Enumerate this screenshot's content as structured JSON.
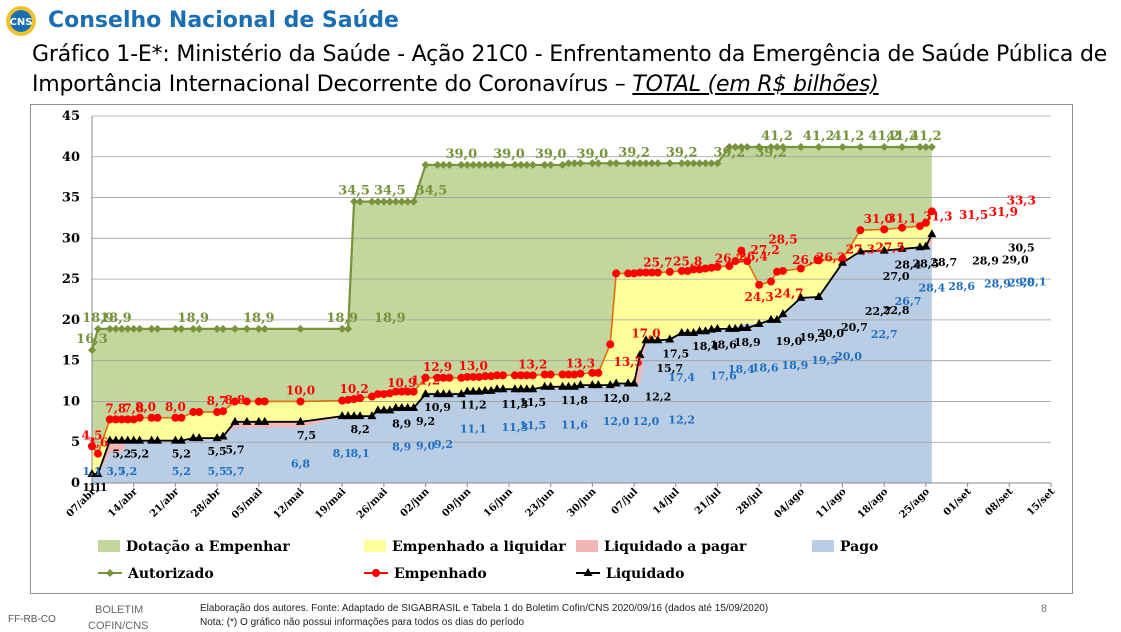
{
  "header": {
    "org_name": "Conselho Nacional de Saúde",
    "logo_text": "CNS",
    "title_main": "Gráfico 1-E*: Ministério da Saúde - Ação 21C0 - Enfrentamento da Emergência de Saúde Pública de Importância Internacional Decorrente do Coronavírus – ",
    "title_unit": "TOTAL (em R$ bilhões)"
  },
  "colors": {
    "autorizado": "#77933c",
    "dotacao_fill": "#c3d69b",
    "empenhado": "#ff0000",
    "empenhado_line": "#e46c0a",
    "emp_fill": "#ffff99",
    "liq_fill": "#f2b6b6",
    "pago_fill": "#b9cde5",
    "liquidado": "#000000",
    "pago_label": "#1f6fc1"
  },
  "chart_data": {
    "type": "area",
    "x_tick_labels": [
      "07/abr",
      "14/abr",
      "21/abr",
      "28/abr",
      "05/mai",
      "12/mai",
      "19/mai",
      "26/mai",
      "02/jun",
      "09/jun",
      "16/jun",
      "23/jun",
      "30/jun",
      "07/jul",
      "14/jul",
      "21/jul",
      "28/jul",
      "04/ago",
      "11/ago",
      "18/ago",
      "25/ago",
      "01/set",
      "08/set",
      "15/set"
    ],
    "ylim": [
      0,
      45
    ],
    "y_ticks": [
      "0",
      "5",
      "10",
      "15",
      "20",
      "25",
      "30",
      "35",
      "40",
      "45"
    ],
    "grid": true,
    "legend_position": "bottom",
    "x_days": [
      0,
      1,
      3,
      4,
      5,
      6,
      7,
      8,
      10,
      11,
      14,
      15,
      17,
      18,
      21,
      22,
      24,
      26,
      28,
      29,
      35,
      42,
      43,
      44,
      45,
      47,
      48,
      49,
      50,
      51,
      52,
      53,
      54,
      56,
      58,
      59,
      60,
      62,
      63,
      64,
      65,
      66,
      67,
      68,
      69,
      71,
      72,
      73,
      74,
      76,
      77,
      79,
      80,
      81,
      82,
      84,
      85,
      87,
      88,
      90,
      91,
      92,
      93,
      94,
      95,
      97,
      99,
      100,
      101,
      102,
      103,
      104,
      105,
      107,
      108,
      109,
      110,
      112,
      114,
      115,
      116,
      119,
      122,
      126,
      129,
      133,
      136,
      139,
      140,
      141
    ],
    "series": [
      {
        "name": "Autorizado",
        "values": [
          16.3,
          18.9,
          18.9,
          18.9,
          18.9,
          18.9,
          18.9,
          18.9,
          18.9,
          18.9,
          18.9,
          18.9,
          18.9,
          18.9,
          18.9,
          18.9,
          18.9,
          18.9,
          18.9,
          18.9,
          18.9,
          18.9,
          18.9,
          34.5,
          34.5,
          34.5,
          34.5,
          34.5,
          34.5,
          34.5,
          34.5,
          34.5,
          34.5,
          39.0,
          39.0,
          39.0,
          39.0,
          39.0,
          39.0,
          39.0,
          39.0,
          39.0,
          39.0,
          39.0,
          39.0,
          39.0,
          39.0,
          39.0,
          39.0,
          39.0,
          39.0,
          39.0,
          39.2,
          39.2,
          39.2,
          39.2,
          39.2,
          39.2,
          39.2,
          39.2,
          39.2,
          39.2,
          39.2,
          39.2,
          39.2,
          39.2,
          39.2,
          39.2,
          39.2,
          39.2,
          39.2,
          39.2,
          39.2,
          41.2,
          41.2,
          41.2,
          41.2,
          41.2,
          41.2,
          41.2,
          41.2,
          41.2,
          41.2,
          41.2,
          41.2,
          41.2,
          41.2,
          41.2,
          41.2,
          41.2
        ]
      },
      {
        "name": "Empenhado",
        "values": [
          4.5,
          3.6,
          7.8,
          7.8,
          7.8,
          7.8,
          7.8,
          8.0,
          8.0,
          8.0,
          8.0,
          8.0,
          8.7,
          8.7,
          8.7,
          8.8,
          10.0,
          10.0,
          10.0,
          10.0,
          10.0,
          10.1,
          10.2,
          10.3,
          10.4,
          10.6,
          10.9,
          10.9,
          11.0,
          11.2,
          11.2,
          11.2,
          11.2,
          12.9,
          12.9,
          12.9,
          12.9,
          12.9,
          13.0,
          13.0,
          13.0,
          13.1,
          13.1,
          13.2,
          13.2,
          13.2,
          13.2,
          13.2,
          13.2,
          13.3,
          13.3,
          13.3,
          13.3,
          13.3,
          13.4,
          13.5,
          13.5,
          17.0,
          25.7,
          25.7,
          25.7,
          25.8,
          25.8,
          25.8,
          25.8,
          25.9,
          26.0,
          26.0,
          26.2,
          26.2,
          26.3,
          26.4,
          26.5,
          26.6,
          27.2,
          28.5,
          27.2,
          24.3,
          24.7,
          25.9,
          26.0,
          26.3,
          27.3,
          27.5,
          31.0,
          31.1,
          31.3,
          31.5,
          31.9,
          33.3
        ]
      },
      {
        "name": "Liquidado",
        "values": [
          1.1,
          1.1,
          5.2,
          5.2,
          5.2,
          5.2,
          5.2,
          5.2,
          5.2,
          5.2,
          5.2,
          5.2,
          5.5,
          5.5,
          5.5,
          5.7,
          7.5,
          7.5,
          7.5,
          7.5,
          7.5,
          8.2,
          8.2,
          8.2,
          8.2,
          8.2,
          8.9,
          8.9,
          8.9,
          9.2,
          9.2,
          9.2,
          9.2,
          10.9,
          10.9,
          10.9,
          10.9,
          10.9,
          11.2,
          11.2,
          11.2,
          11.3,
          11.3,
          11.5,
          11.5,
          11.5,
          11.5,
          11.5,
          11.5,
          11.8,
          11.8,
          11.8,
          11.8,
          11.8,
          12.0,
          12.0,
          12.0,
          12.0,
          12.2,
          12.2,
          12.2,
          15.7,
          17.5,
          17.5,
          17.5,
          17.6,
          18.4,
          18.4,
          18.4,
          18.6,
          18.6,
          18.8,
          18.9,
          18.9,
          18.9,
          19.0,
          19.0,
          19.5,
          20.0,
          20.0,
          20.7,
          22.7,
          22.8,
          27.0,
          28.4,
          28.5,
          28.7,
          28.9,
          29.0,
          30.5
        ]
      },
      {
        "name": "Pago",
        "values": [
          1.1,
          1.1,
          3.7,
          3.7,
          3.7,
          5.2,
          5.2,
          5.2,
          5.2,
          5.2,
          5.2,
          5.2,
          5.4,
          5.4,
          5.5,
          5.7,
          6.8,
          6.8,
          6.8,
          6.8,
          6.8,
          8.1,
          8.1,
          8.1,
          8.1,
          8.1,
          8.9,
          8.9,
          8.9,
          9.2,
          9.2,
          9.2,
          9.2,
          11.1,
          11.1,
          11.1,
          11.1,
          11.1,
          11.1,
          11.1,
          11.1,
          11.3,
          11.3,
          11.5,
          11.5,
          11.5,
          11.5,
          11.5,
          11.5,
          11.6,
          11.6,
          11.6,
          11.6,
          11.6,
          12.0,
          12.0,
          12.0,
          12.0,
          12.2,
          12.2,
          12.2,
          12.2,
          17.4,
          17.4,
          17.4,
          17.6,
          18.4,
          18.4,
          18.4,
          18.6,
          18.6,
          18.8,
          18.9,
          18.9,
          18.9,
          19.5,
          19.5,
          19.5,
          20.0,
          20.0,
          20.7,
          22.7,
          22.7,
          26.7,
          28.4,
          28.4,
          28.6,
          28.9,
          29.0,
          29.1
        ]
      }
    ],
    "point_labels": {
      "autorizado": [
        {
          "t": "16,3",
          "d": 0
        },
        {
          "t": "18,9",
          "d": 1
        },
        {
          "t": "18,9",
          "d": 4
        },
        {
          "t": "18,9",
          "d": 17
        },
        {
          "t": "18,9",
          "d": 28
        },
        {
          "t": "18,9",
          "d": 42
        },
        {
          "t": "18,9",
          "d": 50
        },
        {
          "t": "34,5",
          "d": 44
        },
        {
          "t": "34,5",
          "d": 50
        },
        {
          "t": "34,5",
          "d": 57
        },
        {
          "t": "39,0",
          "d": 62
        },
        {
          "t": "39,0",
          "d": 70
        },
        {
          "t": "39,0",
          "d": 77
        },
        {
          "t": "39,0",
          "d": 84
        },
        {
          "t": "39,2",
          "d": 91
        },
        {
          "t": "39,2",
          "d": 99
        },
        {
          "t": "39,2",
          "d": 107
        },
        {
          "t": "39,2",
          "d": 114
        },
        {
          "t": "41,2",
          "d": 115
        },
        {
          "t": "41,2",
          "d": 122
        },
        {
          "t": "41,2",
          "d": 127
        },
        {
          "t": "41,2",
          "d": 133
        },
        {
          "t": "41,2",
          "d": 136
        },
        {
          "t": "41,2",
          "d": 140
        }
      ],
      "empenhado": [
        {
          "t": "4,5",
          "d": 0
        },
        {
          "t": "3,6",
          "d": 1
        },
        {
          "t": "7,8",
          "d": 4
        },
        {
          "t": "7,8",
          "d": 7
        },
        {
          "t": "8,0",
          "d": 9
        },
        {
          "t": "8,0",
          "d": 14
        },
        {
          "t": "8,7",
          "d": 21
        },
        {
          "t": "8,8",
          "d": 24
        },
        {
          "t": "10,0",
          "d": 35
        },
        {
          "t": "10,2",
          "d": 44
        },
        {
          "t": "10,9",
          "d": 52
        },
        {
          "t": "11,2",
          "d": 56
        },
        {
          "t": "12,9",
          "d": 58
        },
        {
          "t": "13,0",
          "d": 64
        },
        {
          "t": "13,2",
          "d": 74
        },
        {
          "t": "13,3",
          "d": 82
        },
        {
          "t": "13,5",
          "d": 90
        },
        {
          "t": "17,0",
          "d": 93
        },
        {
          "t": "25,7",
          "d": 95
        },
        {
          "t": "25,8",
          "d": 100
        },
        {
          "t": "26,2",
          "d": 107
        },
        {
          "t": "26,4",
          "d": 111
        },
        {
          "t": "27,2",
          "d": 113
        },
        {
          "t": "28,5",
          "d": 116
        },
        {
          "t": "24,3",
          "d": 112
        },
        {
          "t": "24,7",
          "d": 117
        },
        {
          "t": "26,0",
          "d": 120
        },
        {
          "t": "26,3",
          "d": 124
        },
        {
          "t": "27,3",
          "d": 129
        },
        {
          "t": "27,5",
          "d": 134
        },
        {
          "t": "31,0",
          "d": 132
        },
        {
          "t": "31,1",
          "d": 136
        },
        {
          "t": "31,3",
          "d": 142
        },
        {
          "t": "31,5",
          "d": 148
        },
        {
          "t": "31,9",
          "d": 153
        },
        {
          "t": "33,3",
          "d": 156
        }
      ],
      "liquidado": [
        {
          "t": "1,1",
          "d": 0
        },
        {
          "t": "1,1",
          "d": 1
        },
        {
          "t": "5,2",
          "d": 5
        },
        {
          "t": "5,2",
          "d": 8
        },
        {
          "t": "5,2",
          "d": 15
        },
        {
          "t": "5,5",
          "d": 21
        },
        {
          "t": "5,7",
          "d": 24
        },
        {
          "t": "7,5",
          "d": 36
        },
        {
          "t": "8,2",
          "d": 45
        },
        {
          "t": "8,9",
          "d": 52
        },
        {
          "t": "9,2",
          "d": 56
        },
        {
          "t": "10,9",
          "d": 58
        },
        {
          "t": "11,2",
          "d": 64
        },
        {
          "t": "11,3",
          "d": 71
        },
        {
          "t": "11,5",
          "d": 74
        },
        {
          "t": "11,8",
          "d": 81
        },
        {
          "t": "12,0",
          "d": 88
        },
        {
          "t": "12,2",
          "d": 95
        },
        {
          "t": "15,7",
          "d": 97
        },
        {
          "t": "17,5",
          "d": 98
        },
        {
          "t": "18,4",
          "d": 103
        },
        {
          "t": "18,6",
          "d": 106
        },
        {
          "t": "18,9",
          "d": 110
        },
        {
          "t": "19,0",
          "d": 117
        },
        {
          "t": "19,5",
          "d": 121
        },
        {
          "t": "20,0",
          "d": 124
        },
        {
          "t": "20,7",
          "d": 128
        },
        {
          "t": "22,7",
          "d": 132
        },
        {
          "t": "22,8",
          "d": 135
        },
        {
          "t": "27,0",
          "d": 135
        },
        {
          "t": "28,4",
          "d": 137
        },
        {
          "t": "28,5",
          "d": 140
        },
        {
          "t": "28,7",
          "d": 143
        },
        {
          "t": "28,9",
          "d": 150
        },
        {
          "t": "29,0",
          "d": 155
        },
        {
          "t": "30,5",
          "d": 156
        }
      ],
      "pago": [
        {
          "t": "1,1",
          "d": 0
        },
        {
          "t": "3,7",
          "d": 4
        },
        {
          "t": "5,2",
          "d": 6
        },
        {
          "t": "5,2",
          "d": 15
        },
        {
          "t": "5,5",
          "d": 21
        },
        {
          "t": "5,7",
          "d": 24
        },
        {
          "t": "6,8",
          "d": 35
        },
        {
          "t": "8,1",
          "d": 42
        },
        {
          "t": "8,1",
          "d": 45
        },
        {
          "t": "8,9",
          "d": 52
        },
        {
          "t": "9,0",
          "d": 56
        },
        {
          "t": "9,2",
          "d": 59
        },
        {
          "t": "11,1",
          "d": 64
        },
        {
          "t": "11,3",
          "d": 71
        },
        {
          "t": "11,5",
          "d": 74
        },
        {
          "t": "11,6",
          "d": 81
        },
        {
          "t": "12,0",
          "d": 88
        },
        {
          "t": "12,0",
          "d": 93
        },
        {
          "t": "12,2",
          "d": 99
        },
        {
          "t": "17,4",
          "d": 99
        },
        {
          "t": "17,6",
          "d": 106
        },
        {
          "t": "18,4",
          "d": 109
        },
        {
          "t": "18,6",
          "d": 113
        },
        {
          "t": "18,9",
          "d": 118
        },
        {
          "t": "19,5",
          "d": 123
        },
        {
          "t": "20,0",
          "d": 127
        },
        {
          "t": "22,7",
          "d": 133
        },
        {
          "t": "26,7",
          "d": 137
        },
        {
          "t": "28,4",
          "d": 141
        },
        {
          "t": "28,6",
          "d": 146
        },
        {
          "t": "28,9",
          "d": 152
        },
        {
          "t": "29,0",
          "d": 156
        },
        {
          "t": "29,1",
          "d": 158
        }
      ]
    },
    "legend": [
      {
        "label": "Dotação a Empenhar",
        "kind": "fill",
        "color": "#c3d69b"
      },
      {
        "label": "Empenhado a liquidar",
        "kind": "fill",
        "color": "#ffff99"
      },
      {
        "label": "Liquidado a pagar",
        "kind": "fill",
        "color": "#f2b6b6"
      },
      {
        "label": "Pago",
        "kind": "fill",
        "color": "#b9cde5"
      },
      {
        "label": "Autorizado",
        "kind": "line",
        "color": "#77933c",
        "marker": "diamond"
      },
      {
        "label": "Empenhado",
        "kind": "line",
        "color": "#ff0000",
        "marker": "circle"
      },
      {
        "label": "Liquidado",
        "kind": "line",
        "color": "#000000",
        "marker": "triangle"
      }
    ]
  },
  "footer": {
    "left_tag": "FF-RB-CO",
    "boletim_line1": "BOLETIM",
    "boletim_line2": "COFIN/CNS",
    "source": "Elaboração dos autores. Fonte: Adaptado de SIGABRASIL e Tabela 1 do Boletim Cofin/CNS 2020/09/16 (dados até 15/09/2020)",
    "note": "Nota: (*) O gráfico não possui informações para todos os dias do período",
    "page_number": "8"
  }
}
